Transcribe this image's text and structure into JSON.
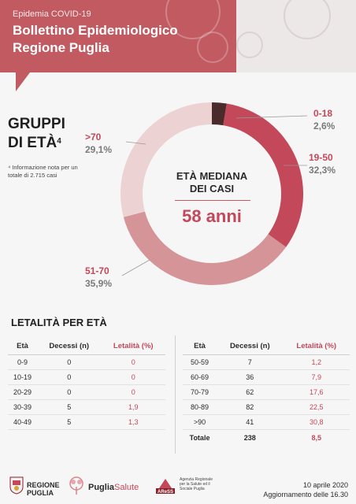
{
  "header": {
    "kicker": "Epidemia COVID-19",
    "title_line1": "Bollettino Epidemiologico",
    "title_line2": "Regione Puglia"
  },
  "gruppi": {
    "title_line1": "GRUPPI",
    "title_line2": "DI ETÀ",
    "footnote_mark": "4",
    "note": "⁴ Informazione nota per un totale di  2.715  casi"
  },
  "donut_center": {
    "title_line1": "ETÀ MEDIANA",
    "title_line2": "DEI CASI",
    "value": "58 anni"
  },
  "chart_data": {
    "type": "pie",
    "series": [
      {
        "label": "0-18",
        "value": 2.6,
        "pct_text": "2,6%",
        "color": "#4a2a2a"
      },
      {
        "label": "19-50",
        "value": 32.3,
        "pct_text": "32,3%",
        "color": "#c2485a"
      },
      {
        "label": "51-70",
        "value": 35.9,
        "pct_text": "35,9%",
        "color": "#d59497"
      },
      {
        "label": ">70",
        "value": 29.1,
        "pct_text": "29,1%",
        "color": "#ecd2d3"
      }
    ]
  },
  "letalita": {
    "title": "LETALITÀ PER ETÀ",
    "col_eta": "Età",
    "col_decessi": "Decessi (n)",
    "col_letalita": "Letalità (%)",
    "left_rows": [
      {
        "eta": "0-9",
        "decessi": "0",
        "letalita": "0"
      },
      {
        "eta": "10-19",
        "decessi": "0",
        "letalita": "0"
      },
      {
        "eta": "20-29",
        "decessi": "0",
        "letalita": "0"
      },
      {
        "eta": "30-39",
        "decessi": "5",
        "letalita": "1,9"
      },
      {
        "eta": "40-49",
        "decessi": "5",
        "letalita": "1,3"
      }
    ],
    "right_rows": [
      {
        "eta": "50-59",
        "decessi": "7",
        "letalita": "1,2"
      },
      {
        "eta": "60-69",
        "decessi": "36",
        "letalita": "7,9"
      },
      {
        "eta": "70-79",
        "decessi": "62",
        "letalita": "17,6"
      },
      {
        "eta": "80-89",
        "decessi": "82",
        "letalita": "22,5"
      },
      {
        "eta": ">90",
        "decessi": "41",
        "letalita": "30,8"
      }
    ],
    "total": {
      "label": "Totale",
      "decessi": "238",
      "letalita": "8,5"
    }
  },
  "footer": {
    "logo1_line1": "REGIONE",
    "logo1_line2": "PUGLIA",
    "logo2_a": "Puglia",
    "logo2_b": "Salute",
    "logo3_text": "AReSS",
    "logo3_desc": "Agenzia Regionale per la Salute ed il Sociale Puglia",
    "date": "10 aprile 2020",
    "update": "Aggiornamento delle 16.30"
  }
}
